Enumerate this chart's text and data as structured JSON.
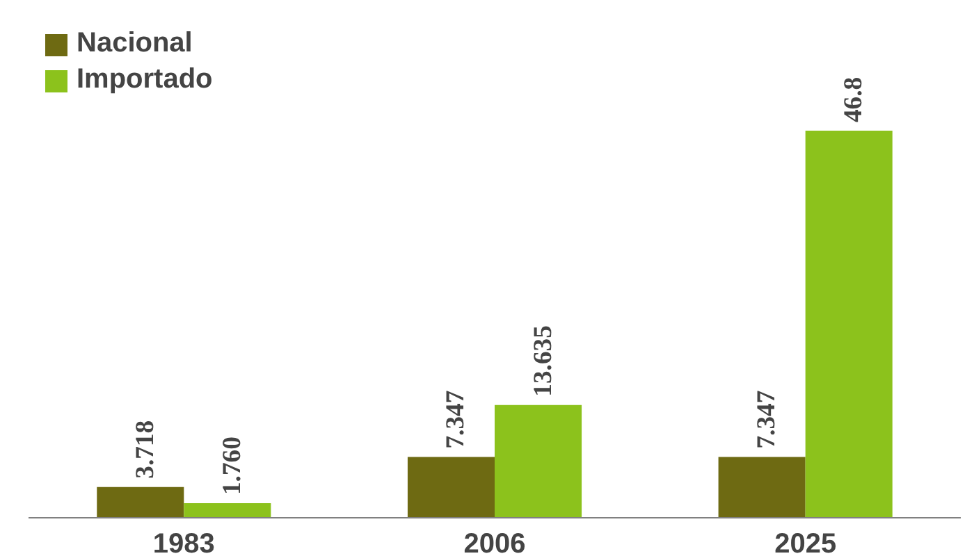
{
  "chart_data": {
    "type": "bar",
    "categories": [
      "1983",
      "2006",
      "2025"
    ],
    "series": [
      {
        "name": "Nacional",
        "color": "#6e6a12",
        "values": [
          3.718,
          7.347,
          7.347
        ],
        "value_labels": [
          "3.718",
          "7.347",
          "7.347"
        ]
      },
      {
        "name": "Importado",
        "color": "#8cc21c",
        "values": [
          1.76,
          13.635,
          46.8
        ],
        "value_labels": [
          "1.760",
          "13.635",
          "46.8"
        ]
      }
    ],
    "legend": "top left",
    "grid": false
  }
}
